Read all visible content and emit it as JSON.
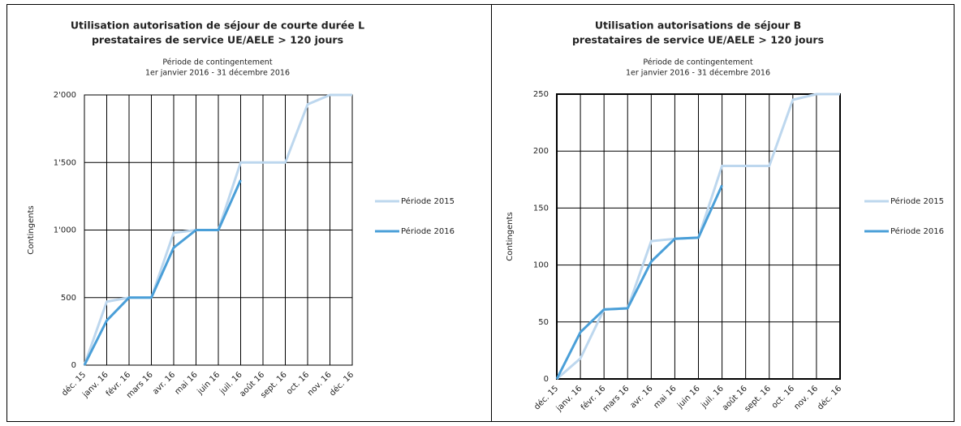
{
  "chart_data": [
    {
      "type": "line",
      "title": [
        "Utilisation autorisation de séjour de courte durée L",
        "prestataires de service UE/AELE > 120 jours"
      ],
      "subtitle": [
        "Période de contingentement",
        "1er janvier 2016 - 31 décembre 2016"
      ],
      "y_label": "Contingents",
      "categories": [
        "déc. 15",
        "janv. 16",
        "févr. 16",
        "mars 16",
        "avr. 16",
        "mai 16",
        "juin 16",
        "juil. 16",
        "août 16",
        "sept. 16",
        "oct. 16",
        "nov. 16",
        "déc. 16"
      ],
      "series": [
        {
          "name": "Période 2015",
          "color": "#bdd7ee",
          "values": [
            0,
            470,
            500,
            500,
            980,
            1000,
            1000,
            1500,
            1500,
            1500,
            1930,
            2000,
            2000
          ]
        },
        {
          "name": "Période 2016",
          "color": "#4a9fd8",
          "values": [
            0,
            330,
            500,
            500,
            870,
            1000,
            1000,
            1370,
            null,
            null,
            null,
            null,
            null
          ]
        }
      ],
      "ylim": [
        0,
        2000
      ],
      "yticks": [
        0,
        500,
        {
          "value": 1000,
          "label": "1'000"
        },
        {
          "value": 1500,
          "label": "1'500"
        },
        {
          "value": 2000,
          "label": "2'000"
        }
      ],
      "grid": true,
      "legend": "right"
    },
    {
      "type": "line",
      "title": [
        "Utilisation autorisations de séjour B",
        "prestataires de service UE/AELE > 120 jours"
      ],
      "subtitle": [
        "Période de contingentement",
        "1er janvier 2016 - 31 décembre 2016"
      ],
      "y_label": "Contingents",
      "categories": [
        "déc. 15",
        "janv. 16",
        "févr. 16",
        "mars 16",
        "avr. 16",
        "mai 16",
        "juin 16",
        "juil. 16",
        "août 16",
        "sept. 16",
        "oct. 16",
        "nov. 16",
        "déc. 16"
      ],
      "series": [
        {
          "name": "Période 2015",
          "color": "#bdd7ee",
          "values": [
            0,
            18,
            61,
            62,
            121,
            123,
            124,
            187,
            187,
            187,
            245,
            250,
            250
          ]
        },
        {
          "name": "Période 2016",
          "color": "#4a9fd8",
          "values": [
            0,
            41,
            61,
            62,
            103,
            123,
            124,
            170,
            null,
            null,
            null,
            null,
            null
          ]
        }
      ],
      "ylim": [
        0,
        250
      ],
      "yticks": [
        0,
        50,
        100,
        150,
        200,
        250
      ],
      "grid": true,
      "legend": "right"
    }
  ]
}
